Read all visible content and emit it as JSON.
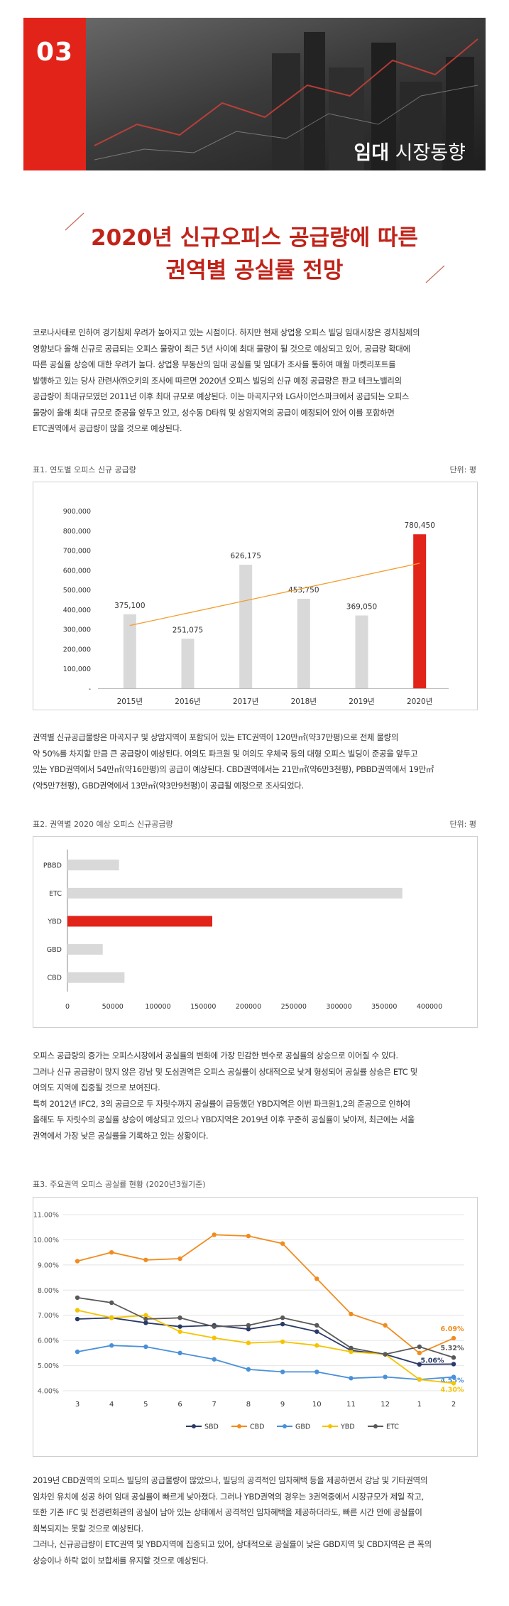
{
  "banner": {
    "number": "03",
    "title_bold": "임대",
    "title_rest": " 시장동향"
  },
  "headline": {
    "line1": "2020년 신규오피스 공급량에 따른",
    "line2": "권역별 공실률 전망"
  },
  "paragraphs": {
    "p1": [
      "코로나사태로 인하여 경기침체 우려가 높아지고 있는 시점이다. 하지만 현재 상업용 오피스 빌딩 임대시장은 경치침체의",
      "영향보다 올해 신규로 공급되는 오피스 물량이 최근 5년 사이에 최대 물량이 될 것으로 예상되고 있어, 공급량 확대에",
      "따른 공실률 상승에 대한 우려가 높다. 상업용 부동산의 임대 공실률 및 임대가 조사를 통하여 매월 마켓리포트를",
      "발행하고 있는 당사 관련사㈜오키의 조사에 따르면 2020년 오피스 빌딩의 신규 예정 공급량은 판교 테크노밸리의",
      "공급량이 최대규모였던 2011년 이후 최대 규모로 예상된다. 이는 마곡지구와 LG사이언스파크에서 공급되는 오피스",
      "물량이 올해 최대 규모로 준공을 앞두고 있고, 성수동 D타워 및 상암지역의 공급이 예정되어 있어 이를 포함하면",
      "ETC권역에서 공급량이 많을 것으로 예상된다."
    ],
    "p2": [
      "권역별 신규공급물량은 마곡지구 및 상암지역이 포함되어 있는 ETC권역이 120만㎡(약37만평)으로 전체 물량의",
      "약 50%를 차지할 만큼 큰 공급량이 예상된다. 여의도 파크원 및 여의도 우체국 등의 대형 오피스 빌딩이 준공을 앞두고",
      "있는 YBD권역에서 54만㎡(약16만평)의 공급이 예상된다. CBD권역에서는 21만㎡(약6만3천평), PBBD권역에서 19만㎡",
      "(약5만7천평), GBD권역에서 13만㎡(약3만9천평)이 공급될 예정으로 조사되었다."
    ],
    "p3": [
      "오피스 공급량의 증가는 오피스시장에서 공실률의 변화에 가장 민감한 변수로 공실률의 상승으로 이어질 수 있다.",
      "그러나 신규 공급량이 많지 않은 강남 및 도심권역은 오피스 공실률이 상대적으로 낮게 형성되어 공실률 상승은 ETC 및",
      "여의도 지역에 집중될 것으로 보여진다.",
      "특히 2012년 IFC2, 3의 공급으로 두 자릿수까지 공실률이 급등했던 YBD지역은 이번 파크원1,2의 준공으로 인하여",
      "올해도 두 자릿수의 공실률 상승이 예상되고 있으나 YBD지역은 2019년 이후 꾸준히 공실률이 낮아져, 최근에는 서울",
      "권역에서 가장 낮은 공실률을 기록하고 있는 상황이다."
    ],
    "p4": [
      "2019년 CBD권역의 오피스 빌딩의 공급물량이 많았으나, 빌딩의 공격적인 임차혜택 등을 제공하면서 강남 및 기타권역의",
      "임차인 유치에 성공 하여 임대 공실률이 빠르게 낮아졌다. 그러나 YBD권역의 경우는 3권역중에서 시장규모가 제일 작고,",
      "또한 기존 IFC 및 전경련회관의 공실이 남아 있는 상태에서 공격적인 임차혜택을 제공하더라도, 빠른 시간 안에 공실률이",
      "회복되지는 못할 것으로 예상된다.",
      "그러나, 신규공급량이 ETC권역 및 YBD지역에 집중되고 있어, 상대적으로 공실률이 낮은 GBD지역 및 CBD지역은 큰 폭의",
      "상승이나 하락 없이 보합세를 유지할 것으로 예상된다."
    ]
  },
  "table1": {
    "caption": "표1. 연도별 오피스 신규 공급량",
    "unit": "단위: 평"
  },
  "table2": {
    "caption": "표2. 권역별 2020 예상 오피스 신규공급량",
    "unit": "단위: 평"
  },
  "table3": {
    "caption": "표3. 주요권역 오피스 공실률 현황 (2020년3월기준)"
  },
  "chart_data": [
    {
      "type": "bar",
      "categories": [
        "2015년",
        "2016년",
        "2017년",
        "2018년",
        "2019년",
        "2020년"
      ],
      "values": [
        375100,
        251075,
        626175,
        453750,
        369050,
        780450
      ],
      "value_labels": [
        "375,100",
        "251,075",
        "626,175",
        "453,750",
        "369,050",
        "780,450"
      ],
      "ytick_labels": [
        "900,000",
        "800,000",
        "700,000",
        "600,000",
        "500,000",
        "400,000",
        "300,000",
        "200,000",
        "100,000",
        "-"
      ],
      "ylim": [
        0,
        900000
      ],
      "trendline": true,
      "colors": {
        "bar": "#d9d9d9",
        "highlight": "#e2231a",
        "trend": "#f39c2b"
      }
    },
    {
      "type": "bar",
      "orientation": "horizontal",
      "categories": [
        "PBBD",
        "ETC",
        "YBD",
        "GBD",
        "CBD"
      ],
      "values": [
        57000,
        370000,
        160000,
        39000,
        63000
      ],
      "xtick_labels": [
        "0",
        "50000",
        "100000",
        "150000",
        "200000",
        "250000",
        "300000",
        "350000",
        "400000"
      ],
      "xlim": [
        0,
        400000
      ],
      "colors": {
        "bar": "#d9d9d9",
        "highlight": "#e2231a"
      }
    },
    {
      "type": "line",
      "x": [
        "3",
        "4",
        "5",
        "6",
        "7",
        "8",
        "9",
        "10",
        "11",
        "12",
        "1",
        "2"
      ],
      "ytick_labels": [
        "11.00%",
        "10.00%",
        "9.00%",
        "8.00%",
        "7.00%",
        "6.00%",
        "5.00%",
        "4.00%"
      ],
      "ylim": [
        4,
        11
      ],
      "series": [
        {
          "name": "SBD",
          "color": "#2b3a67",
          "values": [
            6.85,
            6.9,
            6.7,
            6.55,
            6.6,
            6.45,
            6.65,
            6.35,
            5.6,
            5.45,
            5.05,
            5.06
          ]
        },
        {
          "name": "CBD",
          "color": "#f08c1f",
          "values": [
            9.15,
            9.5,
            9.2,
            9.25,
            10.2,
            10.15,
            9.85,
            8.45,
            7.05,
            6.6,
            5.5,
            6.09
          ]
        },
        {
          "name": "GBD",
          "color": "#4a90d9",
          "values": [
            5.55,
            5.8,
            5.75,
            5.5,
            5.25,
            4.85,
            4.75,
            4.75,
            4.5,
            4.55,
            4.45,
            4.55
          ]
        },
        {
          "name": "YBD",
          "color": "#f5c400",
          "values": [
            7.2,
            6.9,
            7.0,
            6.35,
            6.1,
            5.9,
            5.95,
            5.8,
            5.55,
            5.45,
            4.45,
            4.3
          ]
        },
        {
          "name": "ETC",
          "color": "#595959",
          "values": [
            7.7,
            7.5,
            6.85,
            6.9,
            6.55,
            6.6,
            6.9,
            6.6,
            5.7,
            5.45,
            5.75,
            5.32
          ]
        }
      ],
      "end_labels": [
        "5.06%",
        "6.09%",
        "4.55%",
        "4.30%",
        "5.32%"
      ],
      "legend": "bottom"
    }
  ]
}
